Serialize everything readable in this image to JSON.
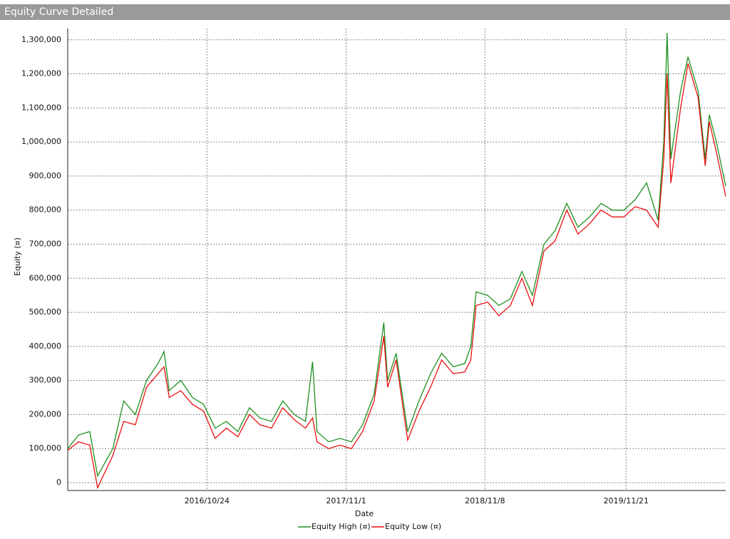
{
  "window_title": "Equity Curve Detailed",
  "chart_data": {
    "type": "line",
    "x_label": "Date",
    "y_label": "Equity (¤)",
    "x": [
      "2015/10/17",
      "2015/11/15",
      "2015/12/15",
      "2016/1/5",
      "2016/2/15",
      "2016/3/15",
      "2016/4/15",
      "2016/5/15",
      "2016/6/15",
      "2016/7/1",
      "2016/7/15",
      "2016/8/15",
      "2016/9/15",
      "2016/10/15",
      "2016/11/15",
      "2016/12/15",
      "2017/1/15",
      "2017/2/15",
      "2017/3/15",
      "2017/4/15",
      "2017/5/15",
      "2017/6/15",
      "2017/7/15",
      "2017/8/3",
      "2017/8/15",
      "2017/9/15",
      "2017/10/15",
      "2017/11/15",
      "2017/12/15",
      "2018/1/15",
      "2018/2/10",
      "2018/2/20",
      "2018/3/15",
      "2018/4/15",
      "2018/5/15",
      "2018/6/15",
      "2018/7/15",
      "2018/8/15",
      "2018/9/15",
      "2018/10/1",
      "2018/10/15",
      "2018/11/15",
      "2018/12/15",
      "2019/1/15",
      "2019/2/15",
      "2019/3/15",
      "2019/4/15",
      "2019/5/15",
      "2019/6/15",
      "2019/7/15",
      "2019/8/15",
      "2019/9/15",
      "2019/10/15",
      "2019/11/15",
      "2019/12/15",
      "2020/1/15",
      "2020/2/15",
      "2020/3/1",
      "2020/3/10",
      "2020/3/20",
      "2020/4/15",
      "2020/5/5",
      "2020/6/1",
      "2020/6/20",
      "2020/7/1",
      "2020/7/20",
      "2020/8/14"
    ],
    "series": [
      {
        "name": "Equity High (¤)",
        "color": "#1f8f1f",
        "values": [
          100000,
          140000,
          150000,
          20000,
          100000,
          240000,
          200000,
          300000,
          350000,
          385000,
          270000,
          300000,
          250000,
          230000,
          160000,
          180000,
          150000,
          220000,
          190000,
          180000,
          240000,
          200000,
          180000,
          355000,
          150000,
          120000,
          130000,
          120000,
          170000,
          260000,
          470000,
          300000,
          380000,
          150000,
          240000,
          320000,
          380000,
          340000,
          350000,
          400000,
          560000,
          550000,
          520000,
          540000,
          620000,
          550000,
          700000,
          740000,
          820000,
          750000,
          780000,
          820000,
          800000,
          800000,
          830000,
          880000,
          770000,
          1000000,
          1320000,
          950000,
          1150000,
          1250000,
          1150000,
          950000,
          1080000,
          1000000,
          870000
        ]
      },
      {
        "name": "Equity Low (¤)",
        "color": "#e81010",
        "values": [
          95000,
          120000,
          110000,
          -15000,
          80000,
          180000,
          170000,
          280000,
          320000,
          340000,
          250000,
          270000,
          230000,
          210000,
          130000,
          160000,
          135000,
          200000,
          170000,
          160000,
          220000,
          185000,
          160000,
          190000,
          120000,
          100000,
          110000,
          100000,
          150000,
          240000,
          430000,
          280000,
          360000,
          125000,
          210000,
          280000,
          360000,
          320000,
          325000,
          360000,
          520000,
          530000,
          490000,
          520000,
          600000,
          520000,
          680000,
          710000,
          800000,
          730000,
          760000,
          800000,
          780000,
          780000,
          810000,
          800000,
          750000,
          950000,
          1200000,
          880000,
          1100000,
          1230000,
          1130000,
          930000,
          1060000,
          970000,
          840000
        ]
      }
    ],
    "xlim": [
      "2015/10/17",
      "2020/8/14"
    ],
    "xticks": [
      "2016/10/24",
      "2017/11/1",
      "2018/11/8",
      "2019/11/21"
    ],
    "ylim": [
      -23000,
      1333000
    ],
    "yticks": [
      0,
      {
        "value": 100000,
        "label": "100,000"
      },
      {
        "value": 200000,
        "label": "200,000"
      },
      {
        "value": 300000,
        "label": "300,000"
      },
      {
        "value": 400000,
        "label": "400,000"
      },
      {
        "value": 500000,
        "label": "500,000"
      },
      {
        "value": 600000,
        "label": "600,000"
      },
      {
        "value": 700000,
        "label": "700,000"
      },
      {
        "value": 800000,
        "label": "800,000"
      },
      {
        "value": 900000,
        "label": "900,000"
      },
      {
        "value": 1000000,
        "label": "1,000,000"
      },
      {
        "value": 1100000,
        "label": "1,100,000"
      },
      {
        "value": 1200000,
        "label": "1,200,000"
      },
      {
        "value": 1300000,
        "label": "1,300,000"
      }
    ],
    "grid": true
  }
}
